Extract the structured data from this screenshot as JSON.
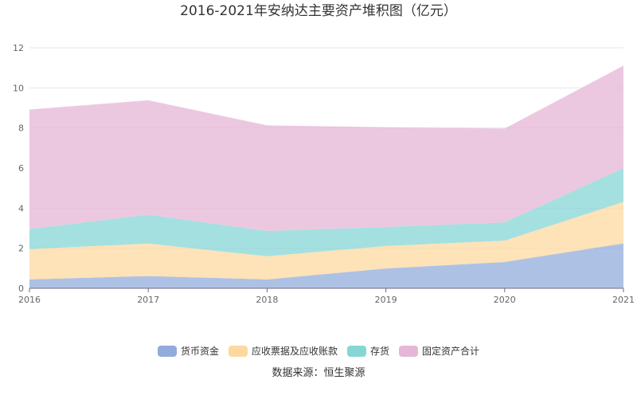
{
  "chart_data": {
    "type": "area",
    "stacked": true,
    "title": "2016-2021年安纳达主要资产堆积图（亿元）",
    "x": [
      "2016",
      "2017",
      "2018",
      "2019",
      "2020",
      "2021"
    ],
    "ylim": [
      0,
      12
    ],
    "yticks": [
      "0",
      "2",
      "4",
      "6",
      "8",
      "10",
      "12"
    ],
    "grid": true,
    "legend_position": "bottom",
    "series": [
      {
        "name": "货币资金",
        "color": "#91acdc",
        "values": [
          0.44,
          0.61,
          0.44,
          0.99,
          1.31,
          2.24
        ]
      },
      {
        "name": "应收票据及应收账款",
        "color": "#fdd8a0",
        "values": [
          1.52,
          1.62,
          1.16,
          1.12,
          1.07,
          2.07
        ]
      },
      {
        "name": "存货",
        "color": "#86d6d6",
        "values": [
          1.0,
          1.44,
          1.26,
          0.95,
          0.91,
          1.69
        ]
      },
      {
        "name": "固定资产合计",
        "color": "#e6b6d6",
        "values": [
          5.96,
          5.71,
          5.27,
          4.98,
          4.68,
          5.11
        ]
      }
    ],
    "source": "数据来源：恒生聚源"
  }
}
